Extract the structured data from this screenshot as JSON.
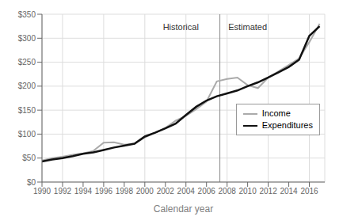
{
  "chart_data": {
    "type": "line",
    "x_label": "Calendar year",
    "x": [
      1990,
      1991,
      1992,
      1993,
      1994,
      1995,
      1996,
      1997,
      1998,
      1999,
      2000,
      2001,
      2002,
      2003,
      2004,
      2005,
      2006,
      2007,
      2008,
      2009,
      2010,
      2011,
      2012,
      2013,
      2014,
      2015,
      2016,
      2017
    ],
    "series": [
      {
        "name": "Income",
        "color": "#aaaaaa",
        "values": [
          45,
          50,
          53,
          57,
          60,
          65,
          82,
          83,
          78,
          80,
          93,
          103,
          113,
          128,
          138,
          152,
          168,
          210,
          215,
          218,
          202,
          196,
          218,
          231,
          244,
          258,
          292,
          330
        ]
      },
      {
        "name": "Expenditures",
        "color": "#111111",
        "values": [
          43,
          47,
          50,
          54,
          59,
          62,
          67,
          72,
          76,
          80,
          95,
          103,
          112,
          122,
          140,
          157,
          170,
          179,
          185,
          191,
          200,
          208,
          218,
          229,
          240,
          255,
          305,
          325
        ]
      }
    ],
    "xlim": [
      1990,
      2017.5
    ],
    "xticks": [
      1990,
      1992,
      1994,
      1996,
      1998,
      2000,
      2002,
      2004,
      2006,
      2008,
      2010,
      2012,
      2014,
      2016
    ],
    "ylim": [
      0,
      350
    ],
    "yticks": [
      {
        "value": 0,
        "label": "$0"
      },
      {
        "value": 50,
        "label": "$50"
      },
      {
        "value": 100,
        "label": "$100"
      },
      {
        "value": 150,
        "label": "$150"
      },
      {
        "value": 200,
        "label": "$200"
      },
      {
        "value": 250,
        "label": "$250"
      },
      {
        "value": 300,
        "label": "$300"
      },
      {
        "value": 350,
        "label": "$350"
      }
    ],
    "grid": true,
    "legend": "lower right",
    "annotations": [
      {
        "text": "Historical",
        "x": 2003.5,
        "y": 308
      },
      {
        "text": "Estimated",
        "x": 2010.0,
        "y": 308
      }
    ],
    "reference_lines": [
      {
        "x": 2007.3,
        "color": "#888888"
      }
    ]
  }
}
